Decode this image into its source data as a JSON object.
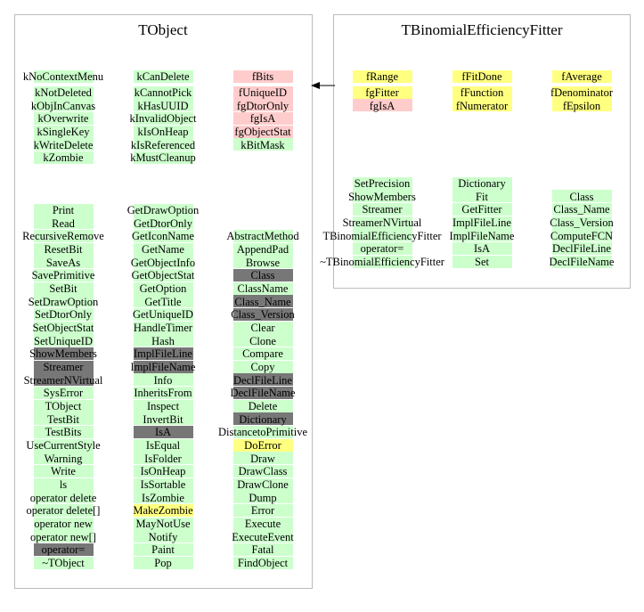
{
  "colors": {
    "green": "#ccffcc",
    "pink": "#ffcccc",
    "yellow": "#ffff80",
    "gray": "#777777"
  },
  "classes": [
    {
      "title": "TObject",
      "members": [
        [
          [
            "kNoContextMenu",
            "green"
          ],
          [
            "kNotDeleted",
            "green"
          ],
          [
            "kObjInCanvas",
            "green"
          ],
          [
            "kOverwrite",
            "green"
          ],
          [
            "kSingleKey",
            "green"
          ],
          [
            "kWriteDelete",
            "green"
          ],
          [
            "kZombie",
            "green"
          ]
        ],
        [
          [
            "kCanDelete",
            "green"
          ],
          [
            "kCannotPick",
            "green"
          ],
          [
            "kHasUUID",
            "green"
          ],
          [
            "kInvalidObject",
            "green"
          ],
          [
            "kIsOnHeap",
            "green"
          ],
          [
            "kIsReferenced",
            "green"
          ],
          [
            "kMustCleanup",
            "green"
          ]
        ],
        [
          [
            "fBits",
            "pink"
          ],
          [
            "fUniqueID",
            "pink"
          ],
          [
            "fgDtorOnly",
            "pink"
          ],
          [
            "fgIsA",
            "pink"
          ],
          [
            "fgObjectStat",
            "pink"
          ],
          [
            "kBitMask",
            "green"
          ]
        ]
      ],
      "methods": [
        [
          [
            "Print",
            "green"
          ],
          [
            "Read",
            "green"
          ],
          [
            "RecursiveRemove",
            "green"
          ],
          [
            "ResetBit",
            "green"
          ],
          [
            "SaveAs",
            "green"
          ],
          [
            "SavePrimitive",
            "green"
          ],
          [
            "SetBit",
            "green"
          ],
          [
            "SetDrawOption",
            "green"
          ],
          [
            "SetDtorOnly",
            "green"
          ],
          [
            "SetObjectStat",
            "green"
          ],
          [
            "SetUniqueID",
            "green"
          ],
          [
            "ShowMembers",
            "gray"
          ],
          [
            "Streamer",
            "gray"
          ],
          [
            "StreamerNVirtual",
            "gray"
          ],
          [
            "SysError",
            "green"
          ],
          [
            "TObject",
            "green"
          ],
          [
            "TestBit",
            "green"
          ],
          [
            "TestBits",
            "green"
          ],
          [
            "UseCurrentStyle",
            "green"
          ],
          [
            "Warning",
            "green"
          ],
          [
            "Write",
            "green"
          ],
          [
            "ls",
            "green"
          ],
          [
            "operator delete",
            "green"
          ],
          [
            "operator delete[]",
            "green"
          ],
          [
            "operator new",
            "green"
          ],
          [
            "operator new[]",
            "green"
          ],
          [
            "operator=",
            "gray"
          ],
          [
            "~TObject",
            "green"
          ]
        ],
        [
          [
            "GetDrawOption",
            "green"
          ],
          [
            "GetDtorOnly",
            "green"
          ],
          [
            "GetIconName",
            "green"
          ],
          [
            "GetName",
            "green"
          ],
          [
            "GetObjectInfo",
            "green"
          ],
          [
            "GetObjectStat",
            "green"
          ],
          [
            "GetOption",
            "green"
          ],
          [
            "GetTitle",
            "green"
          ],
          [
            "GetUniqueID",
            "green"
          ],
          [
            "HandleTimer",
            "green"
          ],
          [
            "Hash",
            "green"
          ],
          [
            "ImplFileLine",
            "gray"
          ],
          [
            "ImplFileName",
            "gray"
          ],
          [
            "Info",
            "green"
          ],
          [
            "InheritsFrom",
            "green"
          ],
          [
            "Inspect",
            "green"
          ],
          [
            "InvertBit",
            "green"
          ],
          [
            "IsA",
            "gray"
          ],
          [
            "IsEqual",
            "green"
          ],
          [
            "IsFolder",
            "green"
          ],
          [
            "IsOnHeap",
            "green"
          ],
          [
            "IsSortable",
            "green"
          ],
          [
            "IsZombie",
            "green"
          ],
          [
            "MakeZombie",
            "yellow"
          ],
          [
            "MayNotUse",
            "green"
          ],
          [
            "Notify",
            "green"
          ],
          [
            "Paint",
            "green"
          ],
          [
            "Pop",
            "green"
          ]
        ],
        [
          [
            "AbstractMethod",
            "green"
          ],
          [
            "AppendPad",
            "green"
          ],
          [
            "Browse",
            "green"
          ],
          [
            "Class",
            "gray"
          ],
          [
            "ClassName",
            "green"
          ],
          [
            "Class_Name",
            "gray"
          ],
          [
            "Class_Version",
            "gray"
          ],
          [
            "Clear",
            "green"
          ],
          [
            "Clone",
            "green"
          ],
          [
            "Compare",
            "green"
          ],
          [
            "Copy",
            "green"
          ],
          [
            "DeclFileLine",
            "gray"
          ],
          [
            "DeclFileName",
            "gray"
          ],
          [
            "Delete",
            "green"
          ],
          [
            "Dictionary",
            "gray"
          ],
          [
            "DistancetoPrimitive",
            "green"
          ],
          [
            "DoError",
            "yellow"
          ],
          [
            "Draw",
            "green"
          ],
          [
            "DrawClass",
            "green"
          ],
          [
            "DrawClone",
            "green"
          ],
          [
            "Dump",
            "green"
          ],
          [
            "Error",
            "green"
          ],
          [
            "Execute",
            "green"
          ],
          [
            "ExecuteEvent",
            "green"
          ],
          [
            "Fatal",
            "green"
          ],
          [
            "FindObject",
            "green"
          ]
        ]
      ]
    },
    {
      "title": "TBinomialEfficiencyFitter",
      "members": [
        [
          [
            "fRange",
            "yellow"
          ],
          [
            "fgFitter",
            "yellow"
          ],
          [
            "fgIsA",
            "pink"
          ]
        ],
        [
          [
            "fFitDone",
            "yellow"
          ],
          [
            "fFunction",
            "yellow"
          ],
          [
            "fNumerator",
            "yellow"
          ]
        ],
        [
          [
            "fAverage",
            "yellow"
          ],
          [
            "fDenominator",
            "yellow"
          ],
          [
            "fEpsilon",
            "yellow"
          ]
        ]
      ],
      "methods": [
        [
          [
            "SetPrecision",
            "green"
          ],
          [
            "ShowMembers",
            "green"
          ],
          [
            "Streamer",
            "green"
          ],
          [
            "StreamerNVirtual",
            "green"
          ],
          [
            "TBinomialEfficiencyFitter",
            "green"
          ],
          [
            "operator=",
            "green"
          ],
          [
            "~TBinomialEfficiencyFitter",
            "green"
          ]
        ],
        [
          [
            "Dictionary",
            "green"
          ],
          [
            "Fit",
            "green"
          ],
          [
            "GetFitter",
            "green"
          ],
          [
            "ImplFileLine",
            "green"
          ],
          [
            "ImplFileName",
            "green"
          ],
          [
            "IsA",
            "green"
          ],
          [
            "Set",
            "green"
          ]
        ],
        [
          [
            "Class",
            "green"
          ],
          [
            "Class_Name",
            "green"
          ],
          [
            "Class_Version",
            "green"
          ],
          [
            "ComputeFCN",
            "green"
          ],
          [
            "DeclFileLine",
            "green"
          ],
          [
            "DeclFileName",
            "green"
          ]
        ]
      ]
    }
  ]
}
